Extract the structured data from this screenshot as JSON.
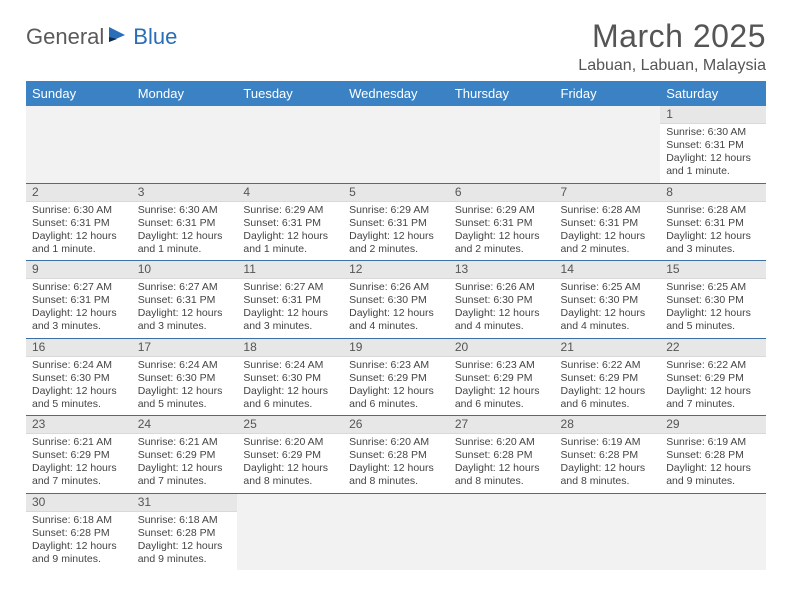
{
  "brand": {
    "part1": "General",
    "part2": "Blue"
  },
  "title": "March 2025",
  "location": "Labuan, Labuan, Malaysia",
  "colors": {
    "header_bg": "#3b82c4",
    "header_fg": "#ffffff",
    "row_divider": "#3b6fa8",
    "daynum_bg": "#e7e7e7",
    "brand_blue": "#2a6db8",
    "text": "#555555"
  },
  "weekdays": [
    "Sunday",
    "Monday",
    "Tuesday",
    "Wednesday",
    "Thursday",
    "Friday",
    "Saturday"
  ],
  "weeks": [
    [
      null,
      null,
      null,
      null,
      null,
      null,
      {
        "n": "1",
        "sunrise": "6:30 AM",
        "sunset": "6:31 PM",
        "daylight": "12 hours and 1 minute."
      }
    ],
    [
      {
        "n": "2",
        "sunrise": "6:30 AM",
        "sunset": "6:31 PM",
        "daylight": "12 hours and 1 minute."
      },
      {
        "n": "3",
        "sunrise": "6:30 AM",
        "sunset": "6:31 PM",
        "daylight": "12 hours and 1 minute."
      },
      {
        "n": "4",
        "sunrise": "6:29 AM",
        "sunset": "6:31 PM",
        "daylight": "12 hours and 1 minute."
      },
      {
        "n": "5",
        "sunrise": "6:29 AM",
        "sunset": "6:31 PM",
        "daylight": "12 hours and 2 minutes."
      },
      {
        "n": "6",
        "sunrise": "6:29 AM",
        "sunset": "6:31 PM",
        "daylight": "12 hours and 2 minutes."
      },
      {
        "n": "7",
        "sunrise": "6:28 AM",
        "sunset": "6:31 PM",
        "daylight": "12 hours and 2 minutes."
      },
      {
        "n": "8",
        "sunrise": "6:28 AM",
        "sunset": "6:31 PM",
        "daylight": "12 hours and 3 minutes."
      }
    ],
    [
      {
        "n": "9",
        "sunrise": "6:27 AM",
        "sunset": "6:31 PM",
        "daylight": "12 hours and 3 minutes."
      },
      {
        "n": "10",
        "sunrise": "6:27 AM",
        "sunset": "6:31 PM",
        "daylight": "12 hours and 3 minutes."
      },
      {
        "n": "11",
        "sunrise": "6:27 AM",
        "sunset": "6:31 PM",
        "daylight": "12 hours and 3 minutes."
      },
      {
        "n": "12",
        "sunrise": "6:26 AM",
        "sunset": "6:30 PM",
        "daylight": "12 hours and 4 minutes."
      },
      {
        "n": "13",
        "sunrise": "6:26 AM",
        "sunset": "6:30 PM",
        "daylight": "12 hours and 4 minutes."
      },
      {
        "n": "14",
        "sunrise": "6:25 AM",
        "sunset": "6:30 PM",
        "daylight": "12 hours and 4 minutes."
      },
      {
        "n": "15",
        "sunrise": "6:25 AM",
        "sunset": "6:30 PM",
        "daylight": "12 hours and 5 minutes."
      }
    ],
    [
      {
        "n": "16",
        "sunrise": "6:24 AM",
        "sunset": "6:30 PM",
        "daylight": "12 hours and 5 minutes."
      },
      {
        "n": "17",
        "sunrise": "6:24 AM",
        "sunset": "6:30 PM",
        "daylight": "12 hours and 5 minutes."
      },
      {
        "n": "18",
        "sunrise": "6:24 AM",
        "sunset": "6:30 PM",
        "daylight": "12 hours and 6 minutes."
      },
      {
        "n": "19",
        "sunrise": "6:23 AM",
        "sunset": "6:29 PM",
        "daylight": "12 hours and 6 minutes."
      },
      {
        "n": "20",
        "sunrise": "6:23 AM",
        "sunset": "6:29 PM",
        "daylight": "12 hours and 6 minutes."
      },
      {
        "n": "21",
        "sunrise": "6:22 AM",
        "sunset": "6:29 PM",
        "daylight": "12 hours and 6 minutes."
      },
      {
        "n": "22",
        "sunrise": "6:22 AM",
        "sunset": "6:29 PM",
        "daylight": "12 hours and 7 minutes."
      }
    ],
    [
      {
        "n": "23",
        "sunrise": "6:21 AM",
        "sunset": "6:29 PM",
        "daylight": "12 hours and 7 minutes."
      },
      {
        "n": "24",
        "sunrise": "6:21 AM",
        "sunset": "6:29 PM",
        "daylight": "12 hours and 7 minutes."
      },
      {
        "n": "25",
        "sunrise": "6:20 AM",
        "sunset": "6:29 PM",
        "daylight": "12 hours and 8 minutes."
      },
      {
        "n": "26",
        "sunrise": "6:20 AM",
        "sunset": "6:28 PM",
        "daylight": "12 hours and 8 minutes."
      },
      {
        "n": "27",
        "sunrise": "6:20 AM",
        "sunset": "6:28 PM",
        "daylight": "12 hours and 8 minutes."
      },
      {
        "n": "28",
        "sunrise": "6:19 AM",
        "sunset": "6:28 PM",
        "daylight": "12 hours and 8 minutes."
      },
      {
        "n": "29",
        "sunrise": "6:19 AM",
        "sunset": "6:28 PM",
        "daylight": "12 hours and 9 minutes."
      }
    ],
    [
      {
        "n": "30",
        "sunrise": "6:18 AM",
        "sunset": "6:28 PM",
        "daylight": "12 hours and 9 minutes."
      },
      {
        "n": "31",
        "sunrise": "6:18 AM",
        "sunset": "6:28 PM",
        "daylight": "12 hours and 9 minutes."
      },
      null,
      null,
      null,
      null,
      null
    ]
  ],
  "labels": {
    "sunrise": "Sunrise:",
    "sunset": "Sunset:",
    "daylight": "Daylight:"
  }
}
